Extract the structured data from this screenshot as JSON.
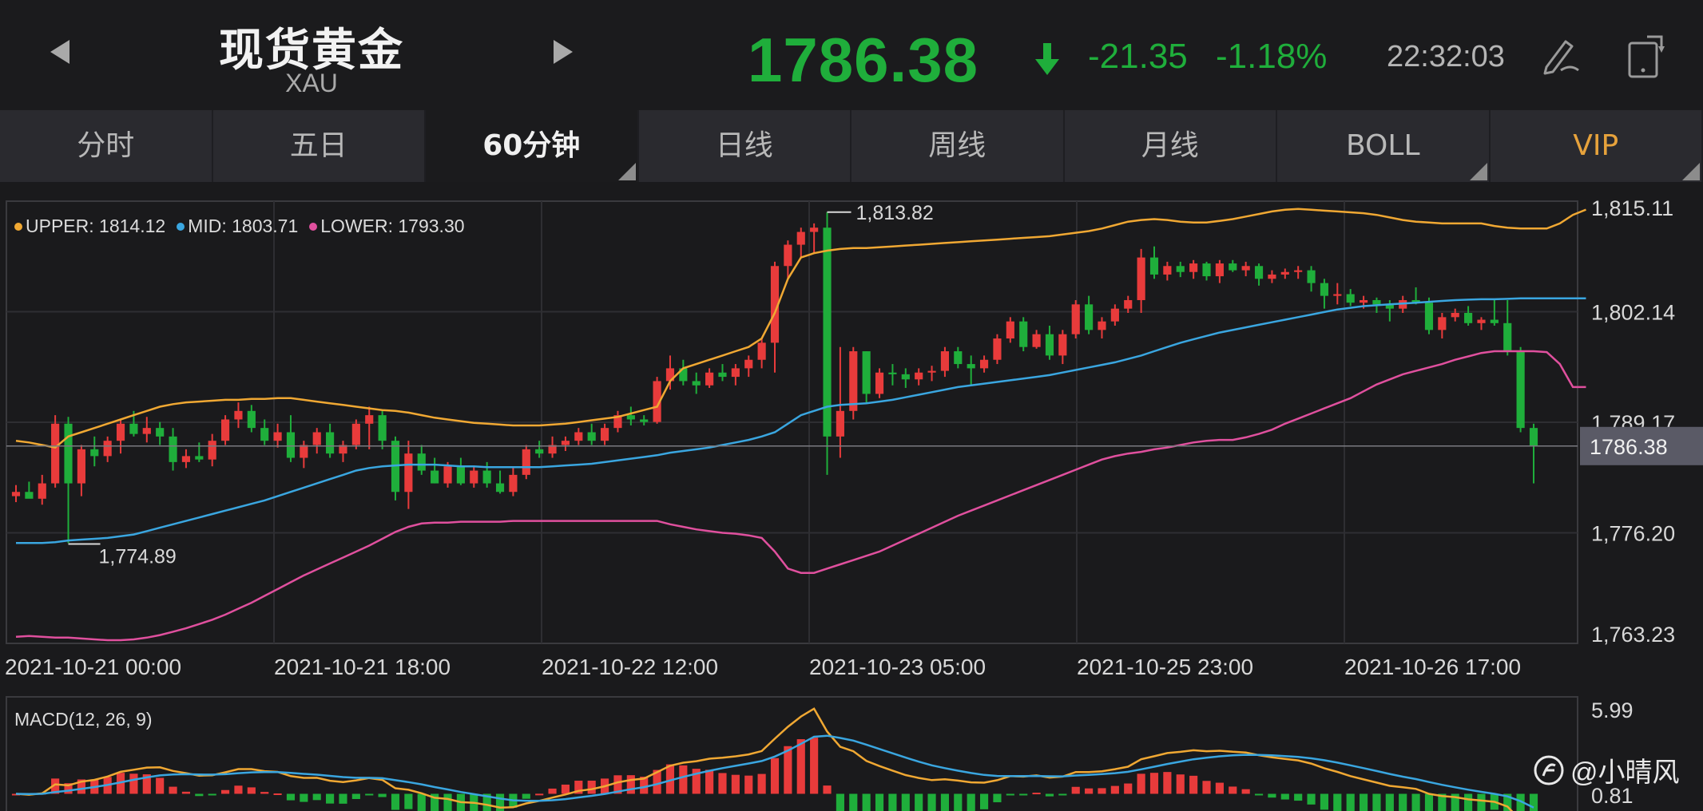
{
  "header": {
    "instrument_name": "现货黄金",
    "instrument_code": "XAU",
    "price": "1786.38",
    "change": "-21.35",
    "change_pct": "-1.18%",
    "time": "22:32:03",
    "colors": {
      "down": "#1fae3b",
      "up": "#e83b3b"
    }
  },
  "tabs": [
    {
      "label": "分时",
      "active": false
    },
    {
      "label": "五日",
      "active": false
    },
    {
      "label": "60分钟",
      "active": true
    },
    {
      "label": "日线",
      "active": false
    },
    {
      "label": "周线",
      "active": false
    },
    {
      "label": "月线",
      "active": false
    },
    {
      "label": "BOLL",
      "active": false
    },
    {
      "label": "VIP",
      "active": false
    }
  ],
  "indicator": {
    "upper_label": "UPPER: 1814.12",
    "mid_label": "MID: 1803.71",
    "lower_label": "LOWER: 1793.30",
    "colors": {
      "upper": "#f0a833",
      "mid": "#3aa6e0",
      "lower": "#e0509e"
    }
  },
  "macd": {
    "label": "MACD(12, 26, 9)",
    "y_ticks": [
      "5.99",
      "0.81"
    ]
  },
  "watermark": "@小晴风",
  "chart_data": {
    "type": "candlestick",
    "y_ticks": [
      "1,815.11",
      "1,802.14",
      "1,789.17",
      "1,776.20",
      "1,763.23"
    ],
    "ylim": [
      1763.23,
      1815.11
    ],
    "x_ticks": [
      "2021-10-21 00:00",
      "2021-10-21 18:00",
      "2021-10-22 12:00",
      "2021-10-23 05:00",
      "2021-10-25 23:00",
      "2021-10-26 17:00"
    ],
    "current_price_label": "1786.38",
    "current_price": 1786.38,
    "high_annotation": {
      "label": "1,813.82",
      "value": 1813.82
    },
    "low_annotation": {
      "label": "1,774.89",
      "value": 1774.89
    },
    "candles": [
      [
        1780.5,
        1781.8,
        1779.8,
        1781.0
      ],
      [
        1781.0,
        1782.2,
        1780.4,
        1780.2
      ],
      [
        1780.2,
        1783.0,
        1779.5,
        1782.0
      ],
      [
        1782.0,
        1790.0,
        1781.5,
        1789.0
      ],
      [
        1789.0,
        1789.8,
        1775.0,
        1782.0
      ],
      [
        1782.0,
        1786.5,
        1780.5,
        1786.0
      ],
      [
        1786.0,
        1787.5,
        1784.0,
        1785.2
      ],
      [
        1785.2,
        1787.5,
        1784.5,
        1787.0
      ],
      [
        1787.0,
        1789.5,
        1785.5,
        1789.0
      ],
      [
        1789.0,
        1790.5,
        1787.5,
        1787.8
      ],
      [
        1787.8,
        1789.8,
        1786.8,
        1788.5
      ],
      [
        1788.5,
        1789.2,
        1786.5,
        1787.5
      ],
      [
        1787.5,
        1788.5,
        1783.5,
        1784.5
      ],
      [
        1784.5,
        1786.0,
        1783.8,
        1785.2
      ],
      [
        1785.2,
        1786.8,
        1784.5,
        1784.8
      ],
      [
        1784.8,
        1787.8,
        1784.0,
        1787.0
      ],
      [
        1787.0,
        1790.0,
        1786.5,
        1789.5
      ],
      [
        1789.5,
        1791.5,
        1788.5,
        1790.5
      ],
      [
        1790.5,
        1791.2,
        1788.0,
        1788.5
      ],
      [
        1788.5,
        1789.5,
        1786.5,
        1787.0
      ],
      [
        1787.0,
        1789.0,
        1786.2,
        1788.0
      ],
      [
        1788.0,
        1790.0,
        1784.5,
        1785.0
      ],
      [
        1785.0,
        1787.0,
        1783.8,
        1786.5
      ],
      [
        1786.5,
        1788.5,
        1785.5,
        1788.0
      ],
      [
        1788.0,
        1789.0,
        1785.0,
        1785.5
      ],
      [
        1785.5,
        1787.0,
        1784.5,
        1786.5
      ],
      [
        1786.5,
        1789.5,
        1786.0,
        1789.0
      ],
      [
        1789.0,
        1791.0,
        1786.0,
        1790.0
      ],
      [
        1790.0,
        1790.5,
        1786.0,
        1787.0
      ],
      [
        1787.0,
        1787.5,
        1780.0,
        1781.0
      ],
      [
        1781.0,
        1787.0,
        1779.0,
        1785.5
      ],
      [
        1785.5,
        1786.5,
        1783.0,
        1783.5
      ],
      [
        1783.5,
        1785.0,
        1782.0,
        1782.0
      ],
      [
        1782.0,
        1784.5,
        1781.5,
        1784.0
      ],
      [
        1784.0,
        1785.0,
        1781.8,
        1782.0
      ],
      [
        1782.0,
        1784.0,
        1781.5,
        1783.5
      ],
      [
        1783.5,
        1784.5,
        1781.5,
        1782.0
      ],
      [
        1782.0,
        1783.5,
        1780.8,
        1781.0
      ],
      [
        1781.0,
        1784.0,
        1780.5,
        1783.0
      ],
      [
        1783.0,
        1786.5,
        1782.5,
        1786.0
      ],
      [
        1786.0,
        1787.0,
        1785.0,
        1785.5
      ],
      [
        1785.5,
        1787.5,
        1785.0,
        1786.5
      ],
      [
        1786.5,
        1787.5,
        1785.8,
        1787.0
      ],
      [
        1787.0,
        1788.5,
        1786.5,
        1788.0
      ],
      [
        1788.0,
        1789.0,
        1786.5,
        1787.0
      ],
      [
        1787.0,
        1789.0,
        1786.5,
        1788.5
      ],
      [
        1788.5,
        1790.5,
        1788.0,
        1790.0
      ],
      [
        1790.0,
        1791.0,
        1788.8,
        1789.5
      ],
      [
        1789.5,
        1790.0,
        1788.8,
        1789.2
      ],
      [
        1789.2,
        1794.5,
        1789.0,
        1794.0
      ],
      [
        1794.0,
        1797.0,
        1793.0,
        1795.5
      ],
      [
        1795.5,
        1796.5,
        1793.5,
        1794.0
      ],
      [
        1794.0,
        1795.0,
        1792.5,
        1793.5
      ],
      [
        1793.5,
        1795.5,
        1793.2,
        1795.0
      ],
      [
        1795.0,
        1796.0,
        1794.0,
        1794.5
      ],
      [
        1794.5,
        1796.0,
        1793.5,
        1795.5
      ],
      [
        1795.5,
        1797.0,
        1794.5,
        1796.5
      ],
      [
        1796.5,
        1799.0,
        1795.5,
        1798.5
      ],
      [
        1798.5,
        1808.0,
        1795.0,
        1807.5
      ],
      [
        1807.5,
        1810.5,
        1806.0,
        1810.0
      ],
      [
        1810.0,
        1812.0,
        1808.5,
        1811.5
      ],
      [
        1811.5,
        1812.5,
        1809.0,
        1812.0
      ],
      [
        1812.0,
        1813.82,
        1783.0,
        1787.5
      ],
      [
        1787.5,
        1798.0,
        1785.0,
        1790.5
      ],
      [
        1790.5,
        1798.0,
        1789.5,
        1797.5
      ],
      [
        1797.5,
        1797.5,
        1791.5,
        1792.5
      ],
      [
        1792.5,
        1795.5,
        1792.0,
        1795.0
      ],
      [
        1795.0,
        1796.0,
        1793.5,
        1794.8
      ],
      [
        1794.8,
        1795.5,
        1793.2,
        1794.2
      ],
      [
        1794.2,
        1795.5,
        1793.5,
        1795.0
      ],
      [
        1795.0,
        1795.8,
        1794.0,
        1795.2
      ],
      [
        1795.2,
        1798.0,
        1794.5,
        1797.5
      ],
      [
        1797.5,
        1798.0,
        1795.5,
        1796.0
      ],
      [
        1796.0,
        1797.0,
        1793.5,
        1795.5
      ],
      [
        1795.5,
        1797.0,
        1795.0,
        1796.5
      ],
      [
        1796.5,
        1799.5,
        1796.0,
        1799.0
      ],
      [
        1799.0,
        1801.5,
        1798.5,
        1801.0
      ],
      [
        1801.0,
        1801.5,
        1797.5,
        1798.0
      ],
      [
        1798.0,
        1800.0,
        1797.8,
        1799.5
      ],
      [
        1799.5,
        1800.5,
        1796.5,
        1797.0
      ],
      [
        1797.0,
        1800.0,
        1796.0,
        1799.5
      ],
      [
        1799.5,
        1803.5,
        1799.0,
        1803.0
      ],
      [
        1803.0,
        1804.0,
        1799.5,
        1800.0
      ],
      [
        1800.0,
        1801.5,
        1799.0,
        1801.0
      ],
      [
        1801.0,
        1803.0,
        1800.5,
        1802.5
      ],
      [
        1802.5,
        1804.0,
        1802.0,
        1803.5
      ],
      [
        1803.5,
        1809.5,
        1802.0,
        1808.5
      ],
      [
        1808.5,
        1809.8,
        1806.0,
        1806.5
      ],
      [
        1806.5,
        1808.0,
        1805.8,
        1807.5
      ],
      [
        1807.5,
        1808.0,
        1806.2,
        1806.8
      ],
      [
        1806.8,
        1808.2,
        1806.0,
        1807.8
      ],
      [
        1807.8,
        1808.0,
        1805.8,
        1806.3
      ],
      [
        1806.3,
        1808.2,
        1805.5,
        1807.8
      ],
      [
        1807.8,
        1808.2,
        1806.8,
        1807.0
      ],
      [
        1807.0,
        1808.0,
        1806.3,
        1807.5
      ],
      [
        1807.5,
        1807.8,
        1805.2,
        1806.0
      ],
      [
        1806.0,
        1807.0,
        1805.5,
        1806.5
      ],
      [
        1806.5,
        1807.2,
        1806.0,
        1806.8
      ],
      [
        1806.8,
        1807.5,
        1806.0,
        1807.0
      ],
      [
        1807.0,
        1807.5,
        1804.5,
        1805.5
      ],
      [
        1805.5,
        1806.0,
        1802.5,
        1804.0
      ],
      [
        1804.0,
        1805.5,
        1803.0,
        1804.2
      ],
      [
        1804.2,
        1804.8,
        1802.8,
        1803.2
      ],
      [
        1803.2,
        1804.0,
        1802.5,
        1803.5
      ],
      [
        1803.5,
        1803.8,
        1802.0,
        1803.0
      ],
      [
        1803.0,
        1803.5,
        1801.0,
        1802.5
      ],
      [
        1802.5,
        1804.0,
        1802.0,
        1803.5
      ],
      [
        1803.5,
        1805.0,
        1803.0,
        1803.2
      ],
      [
        1803.2,
        1803.8,
        1799.5,
        1800.0
      ],
      [
        1800.0,
        1802.0,
        1799.0,
        1801.5
      ],
      [
        1801.5,
        1802.5,
        1801.0,
        1802.0
      ],
      [
        1802.0,
        1802.8,
        1800.5,
        1800.8
      ],
      [
        1800.8,
        1801.5,
        1800.0,
        1801.2
      ],
      [
        1801.2,
        1803.5,
        1800.5,
        1800.8
      ],
      [
        1800.8,
        1803.5,
        1797.0,
        1797.5
      ],
      [
        1797.5,
        1798.0,
        1788.0,
        1788.5
      ],
      [
        1788.5,
        1789.0,
        1782.0,
        1786.38
      ]
    ],
    "boll": {
      "upper": [
        1787.0,
        1786.8,
        1786.5,
        1786.2,
        1787.5,
        1788.0,
        1788.5,
        1789.0,
        1789.5,
        1790.0,
        1790.5,
        1791.0,
        1791.3,
        1791.5,
        1791.6,
        1791.7,
        1791.8,
        1791.8,
        1791.9,
        1791.9,
        1792.0,
        1792.0,
        1791.8,
        1791.6,
        1791.4,
        1791.2,
        1791.0,
        1790.8,
        1790.6,
        1790.5,
        1790.3,
        1790.0,
        1789.7,
        1789.5,
        1789.3,
        1789.1,
        1789.0,
        1788.9,
        1788.8,
        1788.8,
        1788.8,
        1788.9,
        1789.0,
        1789.2,
        1789.4,
        1789.6,
        1789.8,
        1790.2,
        1790.6,
        1791.0,
        1794.0,
        1795.5,
        1796.0,
        1796.5,
        1797.0,
        1797.5,
        1798.0,
        1799.0,
        1802.0,
        1806.0,
        1808.5,
        1809.0,
        1809.3,
        1809.5,
        1809.6,
        1809.6,
        1809.7,
        1809.8,
        1809.9,
        1810.0,
        1810.1,
        1810.2,
        1810.3,
        1810.4,
        1810.5,
        1810.6,
        1810.7,
        1810.8,
        1810.9,
        1811.0,
        1811.2,
        1811.4,
        1811.6,
        1811.9,
        1812.3,
        1812.7,
        1812.9,
        1813.0,
        1812.9,
        1812.7,
        1812.6,
        1812.6,
        1812.8,
        1813.0,
        1813.3,
        1813.6,
        1813.9,
        1814.1,
        1814.2,
        1814.1,
        1814.0,
        1813.9,
        1813.8,
        1813.7,
        1813.5,
        1813.2,
        1812.9,
        1812.7,
        1812.6,
        1812.5,
        1812.5,
        1812.5,
        1812.5,
        1812.2,
        1812.0,
        1811.9,
        1811.9,
        1811.9,
        1812.5,
        1813.5,
        1814.12
      ],
      "mid": [
        1775.0,
        1775.0,
        1775.0,
        1775.1,
        1775.3,
        1775.4,
        1775.5,
        1775.6,
        1775.8,
        1776.0,
        1776.4,
        1776.8,
        1777.2,
        1777.6,
        1778.0,
        1778.4,
        1778.8,
        1779.2,
        1779.6,
        1780.0,
        1780.5,
        1781.0,
        1781.5,
        1782.0,
        1782.5,
        1783.0,
        1783.5,
        1783.8,
        1784.0,
        1784.1,
        1784.2,
        1784.2,
        1784.2,
        1784.1,
        1784.0,
        1784.0,
        1783.9,
        1783.9,
        1783.9,
        1783.9,
        1783.9,
        1784.0,
        1784.1,
        1784.2,
        1784.3,
        1784.5,
        1784.7,
        1784.9,
        1785.1,
        1785.3,
        1785.6,
        1785.8,
        1786.0,
        1786.2,
        1786.5,
        1786.8,
        1787.1,
        1787.5,
        1788.0,
        1789.0,
        1790.0,
        1790.5,
        1791.0,
        1791.2,
        1791.3,
        1791.4,
        1791.6,
        1791.8,
        1792.1,
        1792.4,
        1792.7,
        1793.0,
        1793.3,
        1793.5,
        1793.7,
        1793.9,
        1794.1,
        1794.3,
        1794.5,
        1794.7,
        1795.0,
        1795.3,
        1795.6,
        1795.9,
        1796.2,
        1796.6,
        1797.0,
        1797.5,
        1798.0,
        1798.5,
        1798.9,
        1799.3,
        1799.7,
        1800.0,
        1800.3,
        1800.6,
        1800.9,
        1801.2,
        1801.5,
        1801.8,
        1802.1,
        1802.4,
        1802.6,
        1802.8,
        1802.9,
        1803.0,
        1803.1,
        1803.2,
        1803.3,
        1803.4,
        1803.5,
        1803.55,
        1803.6,
        1803.6,
        1803.65,
        1803.7,
        1803.7,
        1803.7,
        1803.7,
        1803.71,
        1803.71
      ],
      "lower": [
        1764.0,
        1764.1,
        1764.0,
        1763.9,
        1763.9,
        1763.8,
        1763.7,
        1763.6,
        1763.6,
        1763.7,
        1763.9,
        1764.2,
        1764.6,
        1765.0,
        1765.5,
        1766.0,
        1766.6,
        1767.3,
        1768.0,
        1768.8,
        1769.6,
        1770.4,
        1771.2,
        1771.9,
        1772.6,
        1773.3,
        1774.0,
        1774.7,
        1775.5,
        1776.3,
        1776.9,
        1777.3,
        1777.4,
        1777.4,
        1777.5,
        1777.5,
        1777.5,
        1777.5,
        1777.6,
        1777.6,
        1777.6,
        1777.6,
        1777.6,
        1777.6,
        1777.6,
        1777.6,
        1777.6,
        1777.6,
        1777.6,
        1777.6,
        1777.2,
        1776.9,
        1776.6,
        1776.4,
        1776.2,
        1776.1,
        1775.9,
        1775.6,
        1774.0,
        1772.0,
        1771.5,
        1771.5,
        1772.0,
        1772.5,
        1773.0,
        1773.5,
        1774.0,
        1774.7,
        1775.4,
        1776.1,
        1776.8,
        1777.5,
        1778.2,
        1778.8,
        1779.4,
        1780.0,
        1780.6,
        1781.2,
        1781.8,
        1782.4,
        1783.0,
        1783.6,
        1784.2,
        1784.8,
        1785.2,
        1785.5,
        1785.7,
        1786.0,
        1786.2,
        1786.5,
        1786.8,
        1787.0,
        1787.1,
        1787.1,
        1787.4,
        1787.8,
        1788.3,
        1789.0,
        1789.6,
        1790.2,
        1790.8,
        1791.4,
        1792.0,
        1792.8,
        1793.6,
        1794.2,
        1794.8,
        1795.2,
        1795.6,
        1796.0,
        1796.5,
        1796.9,
        1797.3,
        1797.5,
        1797.5,
        1797.5,
        1797.5,
        1797.4,
        1796.0,
        1793.3,
        1793.3
      ]
    },
    "macd_ylim": [
      -1.2,
      5.99
    ]
  }
}
